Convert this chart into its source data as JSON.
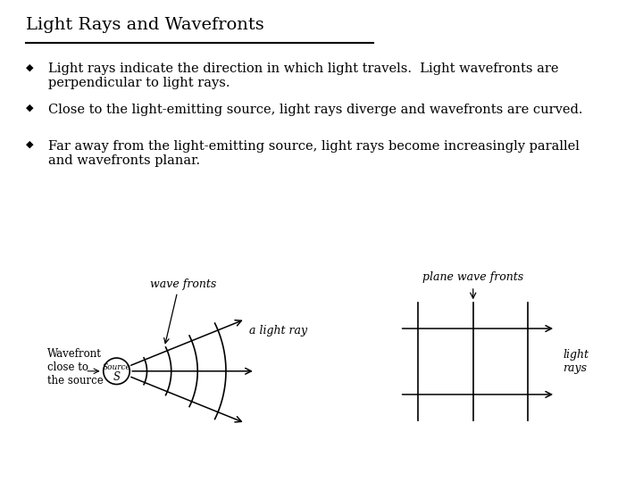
{
  "title": "Light Rays and Wavefronts",
  "bullet1": "Light rays indicate the direction in which light travels.  Light wavefronts are\nperpendicular to light rays.",
  "bullet2": "Close to the light-emitting source, light rays diverge and wavefronts are curved.",
  "bullet3": "Far away from the light-emitting source, light rays become increasingly parallel\nand wavefronts planar.",
  "bg_color": "#ffffff",
  "text_color": "#000000",
  "title_fontsize": 14,
  "body_fontsize": 10.5,
  "diagram_label_fontsize": 9
}
